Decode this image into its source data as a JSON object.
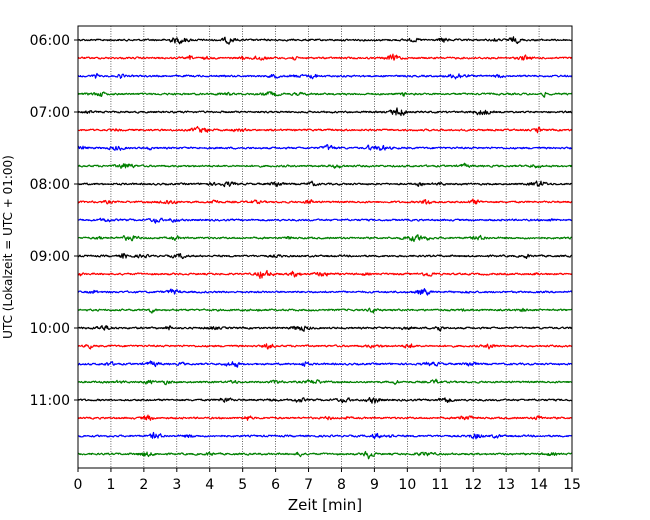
{
  "chart_data": {
    "type": "line",
    "xlabel": "Zeit  [min]",
    "ylabel": "UTC (Lokalzeit = UTC + 01:00)",
    "xlim": [
      0,
      15
    ],
    "x_ticks": [
      "0",
      "1",
      "2",
      "3",
      "4",
      "5",
      "6",
      "7",
      "8",
      "9",
      "10",
      "11",
      "12",
      "13",
      "14",
      "15"
    ],
    "y_tick_labels": [
      "06:00",
      "07:00",
      "08:00",
      "09:00",
      "10:00",
      "11:00"
    ],
    "trace_interval_minutes": 15,
    "first_trace_time": "06:00",
    "last_trace_time": "11:45",
    "trace_count": 24,
    "trace_colors": [
      "#000000",
      "#ff0000",
      "#0000ff",
      "#008000"
    ],
    "vertical_grid": true,
    "grid_style": "dotted"
  }
}
